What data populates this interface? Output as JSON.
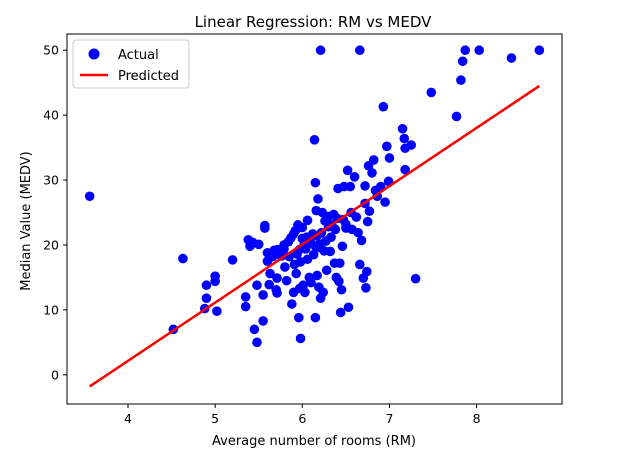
{
  "chart_data": {
    "type": "scatter",
    "title": "Linear Regression: RM vs MEDV",
    "xlabel": "Average number of rooms (RM)",
    "ylabel": "Median Value (MEDV)",
    "xlim": [
      3.3,
      8.98
    ],
    "ylim": [
      -4.5,
      52.5
    ],
    "xticks": [
      4,
      5,
      6,
      7,
      8
    ],
    "yticks": [
      0,
      10,
      20,
      30,
      40,
      50
    ],
    "grid": false,
    "legend_position": "top-left",
    "series": [
      {
        "name": "Actual",
        "kind": "scatter",
        "color": "#0000ff",
        "points": [
          [
            3.56,
            27.5
          ],
          [
            4.52,
            7.0
          ],
          [
            4.63,
            17.9
          ],
          [
            4.88,
            10.2
          ],
          [
            4.9,
            13.8
          ],
          [
            4.9,
            11.8
          ],
          [
            5.0,
            15.2
          ],
          [
            5.0,
            14.4
          ],
          [
            5.02,
            9.8
          ],
          [
            5.2,
            17.7
          ],
          [
            5.35,
            12.0
          ],
          [
            5.35,
            10.5
          ],
          [
            5.38,
            20.8
          ],
          [
            5.4,
            19.8
          ],
          [
            5.43,
            20.4
          ],
          [
            5.45,
            7.0
          ],
          [
            5.48,
            5.0
          ],
          [
            5.48,
            13.8
          ],
          [
            5.5,
            20.1
          ],
          [
            5.55,
            8.3
          ],
          [
            5.55,
            12.3
          ],
          [
            5.57,
            22.6
          ],
          [
            5.57,
            23.0
          ],
          [
            5.6,
            17.5
          ],
          [
            5.6,
            18.8
          ],
          [
            5.62,
            13.9
          ],
          [
            5.63,
            15.6
          ],
          [
            5.66,
            18.2
          ],
          [
            5.68,
            19.2
          ],
          [
            5.7,
            13.1
          ],
          [
            5.71,
            12.6
          ],
          [
            5.71,
            14.9
          ],
          [
            5.72,
            19.3
          ],
          [
            5.74,
            19.0
          ],
          [
            5.76,
            18.3
          ],
          [
            5.79,
            19.4
          ],
          [
            5.79,
            20.0
          ],
          [
            5.8,
            16.6
          ],
          [
            5.82,
            14.5
          ],
          [
            5.84,
            20.5
          ],
          [
            5.85,
            18.2
          ],
          [
            5.87,
            21.1
          ],
          [
            5.88,
            10.9
          ],
          [
            5.9,
            21.7
          ],
          [
            5.9,
            12.7
          ],
          [
            5.91,
            17.0
          ],
          [
            5.92,
            22.2
          ],
          [
            5.93,
            15.6
          ],
          [
            5.94,
            18.6
          ],
          [
            5.95,
            23.1
          ],
          [
            5.96,
            8.8
          ],
          [
            5.97,
            19.3
          ],
          [
            5.97,
            13.3
          ],
          [
            5.98,
            5.6
          ],
          [
            5.98,
            17.4
          ],
          [
            6.0,
            21.0
          ],
          [
            6.0,
            22.7
          ],
          [
            6.01,
            13.8
          ],
          [
            6.02,
            20.0
          ],
          [
            6.03,
            12.7
          ],
          [
            6.04,
            19.4
          ],
          [
            6.05,
            21.2
          ],
          [
            6.06,
            23.8
          ],
          [
            6.06,
            17.8
          ],
          [
            6.08,
            15.0
          ],
          [
            6.1,
            20.3
          ],
          [
            6.1,
            14.2
          ],
          [
            6.12,
            21.7
          ],
          [
            6.13,
            18.5
          ],
          [
            6.14,
            36.2
          ],
          [
            6.15,
            19.8
          ],
          [
            6.15,
            8.8
          ],
          [
            6.15,
            29.6
          ],
          [
            6.16,
            25.3
          ],
          [
            6.17,
            15.3
          ],
          [
            6.17,
            21.4
          ],
          [
            6.18,
            27.1
          ],
          [
            6.19,
            13.5
          ],
          [
            6.2,
            19.6
          ],
          [
            6.2,
            20.1
          ],
          [
            6.21,
            11.8
          ],
          [
            6.21,
            50.0
          ],
          [
            6.22,
            21.9
          ],
          [
            6.23,
            25.0
          ],
          [
            6.24,
            12.7
          ],
          [
            6.25,
            19.1
          ],
          [
            6.26,
            23.7
          ],
          [
            6.27,
            20.6
          ],
          [
            6.28,
            16.1
          ],
          [
            6.3,
            22.8
          ],
          [
            6.3,
            24.4
          ],
          [
            6.32,
            19.0
          ],
          [
            6.33,
            21.2
          ],
          [
            6.34,
            23.1
          ],
          [
            6.36,
            24.7
          ],
          [
            6.37,
            17.2
          ],
          [
            6.38,
            22.4
          ],
          [
            6.39,
            15.0
          ],
          [
            6.4,
            24.1
          ],
          [
            6.41,
            28.7
          ],
          [
            6.42,
            14.4
          ],
          [
            6.43,
            17.2
          ],
          [
            6.44,
            9.6
          ],
          [
            6.45,
            13.1
          ],
          [
            6.46,
            19.8
          ],
          [
            6.47,
            23.9
          ],
          [
            6.48,
            29.0
          ],
          [
            6.5,
            23.2
          ],
          [
            6.5,
            22.6
          ],
          [
            6.52,
            31.5
          ],
          [
            6.53,
            10.4
          ],
          [
            6.55,
            29.0
          ],
          [
            6.56,
            25.0
          ],
          [
            6.57,
            22.4
          ],
          [
            6.6,
            30.5
          ],
          [
            6.62,
            24.3
          ],
          [
            6.64,
            21.9
          ],
          [
            6.66,
            17.0
          ],
          [
            6.66,
            50.0
          ],
          [
            6.68,
            20.7
          ],
          [
            6.7,
            14.9
          ],
          [
            6.72,
            26.4
          ],
          [
            6.72,
            29.1
          ],
          [
            6.73,
            13.4
          ],
          [
            6.74,
            15.9
          ],
          [
            6.75,
            23.6
          ],
          [
            6.76,
            32.2
          ],
          [
            6.77,
            25.2
          ],
          [
            6.8,
            31.1
          ],
          [
            6.82,
            33.1
          ],
          [
            6.84,
            28.4
          ],
          [
            6.86,
            27.5
          ],
          [
            6.9,
            29.0
          ],
          [
            6.93,
            41.3
          ],
          [
            6.95,
            26.6
          ],
          [
            6.97,
            35.2
          ],
          [
            6.99,
            29.8
          ],
          [
            7.0,
            33.4
          ],
          [
            7.15,
            37.9
          ],
          [
            7.17,
            36.4
          ],
          [
            7.18,
            34.9
          ],
          [
            7.18,
            31.6
          ],
          [
            7.25,
            35.4
          ],
          [
            7.3,
            14.8
          ],
          [
            7.48,
            43.5
          ],
          [
            7.77,
            39.8
          ],
          [
            7.82,
            45.4
          ],
          [
            7.84,
            48.3
          ],
          [
            7.87,
            50.0
          ],
          [
            8.03,
            50.0
          ],
          [
            8.4,
            48.8
          ],
          [
            8.72,
            50.0
          ]
        ]
      },
      {
        "name": "Predicted",
        "kind": "line",
        "color": "#ff0000",
        "points": [
          [
            3.56,
            -1.8
          ],
          [
            8.72,
            44.5
          ]
        ]
      }
    ]
  }
}
